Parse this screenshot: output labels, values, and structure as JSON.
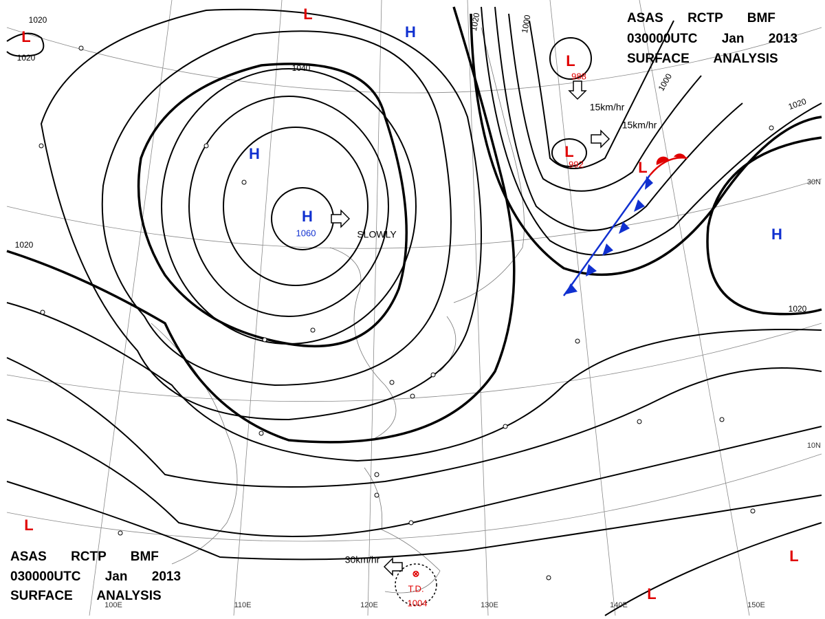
{
  "titles": [
    {
      "lines": [
        "ASAS RCTP BMF",
        "030000UTC Jan 2013",
        "SURFACE ANALYSIS"
      ]
    },
    {
      "lines": [
        "ASAS RCTP BMF",
        "030000UTC Jan 2013",
        "SURFACE ANALYSIS"
      ]
    }
  ],
  "pressure_centers": [
    "L",
    "L",
    "L",
    "L",
    "L",
    "L",
    "L",
    "L",
    "H",
    "H",
    "H",
    "H"
  ],
  "isobar_labels": [
    1020,
    1020,
    1020,
    1020,
    1020,
    1020,
    1040,
    1000,
    1000
  ],
  "center_pressures": [
    1060,
    988,
    992
  ],
  "motion": [
    "15km/hr",
    "15km/hr",
    "SLOWLY",
    "30km/hr"
  ],
  "tropical_depression": {
    "label": "T.D.",
    "pressure": 1004
  },
  "longitudes": [
    "100E",
    "110E",
    "120E",
    "130E",
    "140E",
    "150E"
  ],
  "latitudes": [
    "30N",
    "10N"
  ]
}
